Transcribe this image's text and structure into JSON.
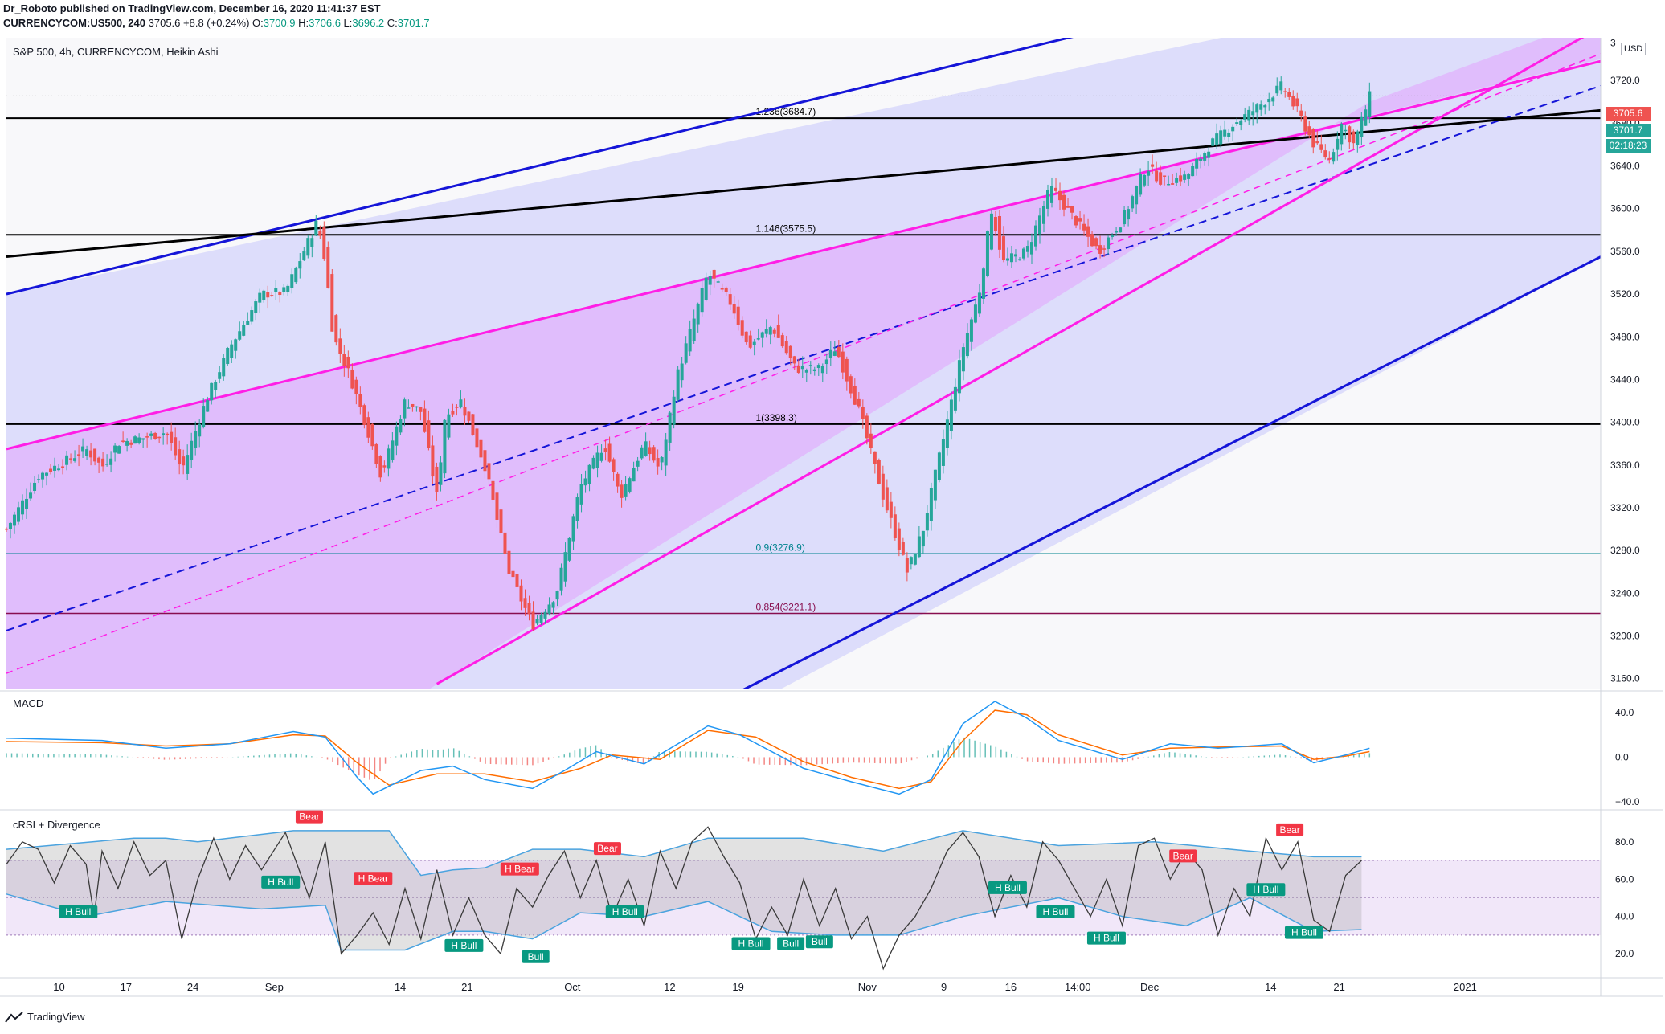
{
  "header": {
    "line1": "Dr_Roboto published on TradingView.com, December 16, 2020 11:41:37 EST",
    "symbol": "CURRENCYCOM:US500, 240",
    "last": "3705.6",
    "change": "+8.8 (+0.24%)",
    "o_label": "O:",
    "o": "3700.9",
    "h_label": "H:",
    "h": "3706.6",
    "l_label": "L:",
    "l": "3696.2",
    "c_label": "C:",
    "c": "3701.7"
  },
  "main_pane": {
    "title": "S&P 500, 4h, CURRENCYCOM, Heikin Ashi",
    "currency": "USD",
    "price_tag": "3705.6",
    "close_tag": "3701.7",
    "countdown": "02:18:23",
    "top_tick_partial": "3"
  },
  "colors": {
    "up": "#26a69a",
    "down": "#ef5350",
    "channel_blue": "#1515d8",
    "channel_pink": "#ff1ee6",
    "fib_black": "#000000",
    "fib_teal": "#00838f",
    "fib_red": "#880e4f",
    "macd_line": "#2196f3",
    "signal_line": "#ff6d00",
    "crsi_band": "#4aa3df",
    "bear": "#f23645",
    "bull": "#089981"
  },
  "macd_pane": {
    "title": "MACD"
  },
  "crsi_pane": {
    "title": "cRSI + Divergence"
  },
  "brand": "TradingView",
  "chart_data": [
    {
      "type": "candlestick",
      "title": "S&P 500, 4h, CURRENCYCOM, Heikin Ashi",
      "ylim": [
        3150,
        3760
      ],
      "y_ticks": [
        3720.0,
        3680.0,
        3640.0,
        3600.0,
        3560.0,
        3520.0,
        3480.0,
        3440.0,
        3400.0,
        3360.0,
        3320.0,
        3280.0,
        3240.0,
        3200.0,
        3160.0
      ],
      "x_ticks": [
        "10",
        "17",
        "24",
        "Sep",
        "14",
        "21",
        "Oct",
        "12",
        "19",
        "Nov",
        "9",
        "16",
        "14:00",
        "Dec",
        "14",
        "21",
        "2021"
      ],
      "close_path": [
        [
          0.0,
          3300
        ],
        [
          0.02,
          3350
        ],
        [
          0.035,
          3362
        ],
        [
          0.05,
          3375
        ],
        [
          0.06,
          3358
        ],
        [
          0.07,
          3381
        ],
        [
          0.085,
          3385
        ],
        [
          0.1,
          3391
        ],
        [
          0.11,
          3355
        ],
        [
          0.125,
          3420
        ],
        [
          0.14,
          3470
        ],
        [
          0.16,
          3520
        ],
        [
          0.175,
          3522
        ],
        [
          0.185,
          3555
        ],
        [
          0.195,
          3588
        ],
        [
          0.2,
          3550
        ],
        [
          0.205,
          3480
        ],
        [
          0.215,
          3445
        ],
        [
          0.225,
          3400
        ],
        [
          0.235,
          3350
        ],
        [
          0.25,
          3420
        ],
        [
          0.26,
          3410
        ],
        [
          0.27,
          3330
        ],
        [
          0.275,
          3405
        ],
        [
          0.285,
          3420
        ],
        [
          0.3,
          3360
        ],
        [
          0.315,
          3260
        ],
        [
          0.33,
          3210
        ],
        [
          0.345,
          3240
        ],
        [
          0.36,
          3340
        ],
        [
          0.375,
          3380
        ],
        [
          0.385,
          3330
        ],
        [
          0.4,
          3380
        ],
        [
          0.41,
          3355
        ],
        [
          0.42,
          3440
        ],
        [
          0.44,
          3540
        ],
        [
          0.455,
          3510
        ],
        [
          0.465,
          3470
        ],
        [
          0.48,
          3490
        ],
        [
          0.495,
          3450
        ],
        [
          0.51,
          3450
        ],
        [
          0.52,
          3470
        ],
        [
          0.535,
          3410
        ],
        [
          0.55,
          3330
        ],
        [
          0.565,
          3260
        ],
        [
          0.575,
          3300
        ],
        [
          0.59,
          3400
        ],
        [
          0.6,
          3470
        ],
        [
          0.61,
          3520
        ],
        [
          0.618,
          3600
        ],
        [
          0.625,
          3550
        ],
        [
          0.64,
          3560
        ],
        [
          0.655,
          3620
        ],
        [
          0.67,
          3590
        ],
        [
          0.685,
          3560
        ],
        [
          0.7,
          3590
        ],
        [
          0.715,
          3640
        ],
        [
          0.725,
          3625
        ],
        [
          0.74,
          3630
        ],
        [
          0.755,
          3660
        ],
        [
          0.77,
          3680
        ],
        [
          0.785,
          3695
        ],
        [
          0.8,
          3715
        ],
        [
          0.81,
          3690
        ],
        [
          0.82,
          3660
        ],
        [
          0.83,
          3645
        ],
        [
          0.837,
          3680
        ],
        [
          0.845,
          3660
        ],
        [
          0.855,
          3705
        ]
      ],
      "levels": [
        {
          "label": "1.236(3684.7)",
          "value": 3684.7
        },
        {
          "label": "1.146(3575.5)",
          "value": 3575.5
        },
        {
          "label": "1(3398.3)",
          "value": 3398.3
        },
        {
          "label": "0.9(3276.9)",
          "value": 3276.9
        },
        {
          "label": "0.854(3221.1)",
          "value": 3221.1
        }
      ]
    },
    {
      "type": "line",
      "title": "MACD",
      "ylim": [
        -45,
        55
      ],
      "y_ticks": [
        40.0,
        0.0,
        -40.0
      ],
      "macd_path": [
        [
          0.0,
          17
        ],
        [
          0.06,
          15
        ],
        [
          0.1,
          8
        ],
        [
          0.14,
          12
        ],
        [
          0.18,
          23
        ],
        [
          0.2,
          18
        ],
        [
          0.22,
          -18
        ],
        [
          0.23,
          -33
        ],
        [
          0.26,
          -12
        ],
        [
          0.28,
          -8
        ],
        [
          0.3,
          -20
        ],
        [
          0.33,
          -28
        ],
        [
          0.35,
          -12
        ],
        [
          0.37,
          5
        ],
        [
          0.4,
          -6
        ],
        [
          0.44,
          28
        ],
        [
          0.46,
          20
        ],
        [
          0.5,
          -10
        ],
        [
          0.53,
          -22
        ],
        [
          0.56,
          -33
        ],
        [
          0.58,
          -20
        ],
        [
          0.6,
          30
        ],
        [
          0.62,
          50
        ],
        [
          0.64,
          35
        ],
        [
          0.66,
          15
        ],
        [
          0.7,
          -2
        ],
        [
          0.73,
          12
        ],
        [
          0.76,
          8
        ],
        [
          0.8,
          12
        ],
        [
          0.82,
          -5
        ],
        [
          0.84,
          2
        ],
        [
          0.855,
          8
        ]
      ],
      "signal_path": [
        [
          0.0,
          14
        ],
        [
          0.06,
          13
        ],
        [
          0.1,
          10
        ],
        [
          0.14,
          12
        ],
        [
          0.18,
          20
        ],
        [
          0.2,
          19
        ],
        [
          0.22,
          -5
        ],
        [
          0.24,
          -25
        ],
        [
          0.27,
          -15
        ],
        [
          0.3,
          -15
        ],
        [
          0.33,
          -22
        ],
        [
          0.36,
          -10
        ],
        [
          0.38,
          2
        ],
        [
          0.41,
          -2
        ],
        [
          0.44,
          24
        ],
        [
          0.47,
          18
        ],
        [
          0.5,
          -4
        ],
        [
          0.53,
          -18
        ],
        [
          0.56,
          -28
        ],
        [
          0.58,
          -22
        ],
        [
          0.6,
          15
        ],
        [
          0.62,
          42
        ],
        [
          0.64,
          38
        ],
        [
          0.66,
          20
        ],
        [
          0.7,
          2
        ],
        [
          0.73,
          8
        ],
        [
          0.76,
          9
        ],
        [
          0.8,
          10
        ],
        [
          0.82,
          -2
        ],
        [
          0.84,
          1
        ],
        [
          0.855,
          5
        ]
      ]
    },
    {
      "type": "line",
      "title": "cRSI + Divergence",
      "ylim": [
        8,
        95
      ],
      "y_ticks": [
        80.0,
        60.0,
        40.0,
        20.0
      ],
      "crsi_path": [
        [
          0.0,
          68
        ],
        [
          0.01,
          80
        ],
        [
          0.02,
          76
        ],
        [
          0.03,
          58
        ],
        [
          0.04,
          78
        ],
        [
          0.05,
          68
        ],
        [
          0.055,
          40
        ],
        [
          0.06,
          75
        ],
        [
          0.07,
          55
        ],
        [
          0.08,
          80
        ],
        [
          0.09,
          62
        ],
        [
          0.1,
          70
        ],
        [
          0.11,
          28
        ],
        [
          0.12,
          60
        ],
        [
          0.13,
          82
        ],
        [
          0.14,
          60
        ],
        [
          0.15,
          78
        ],
        [
          0.16,
          65
        ],
        [
          0.175,
          85
        ],
        [
          0.19,
          50
        ],
        [
          0.2,
          80
        ],
        [
          0.21,
          20
        ],
        [
          0.22,
          30
        ],
        [
          0.23,
          42
        ],
        [
          0.24,
          25
        ],
        [
          0.25,
          55
        ],
        [
          0.26,
          28
        ],
        [
          0.27,
          65
        ],
        [
          0.28,
          30
        ],
        [
          0.29,
          50
        ],
        [
          0.3,
          30
        ],
        [
          0.31,
          20
        ],
        [
          0.32,
          55
        ],
        [
          0.33,
          45
        ],
        [
          0.34,
          62
        ],
        [
          0.35,
          75
        ],
        [
          0.36,
          50
        ],
        [
          0.37,
          70
        ],
        [
          0.38,
          40
        ],
        [
          0.39,
          60
        ],
        [
          0.4,
          35
        ],
        [
          0.41,
          75
        ],
        [
          0.42,
          55
        ],
        [
          0.43,
          80
        ],
        [
          0.44,
          88
        ],
        [
          0.45,
          72
        ],
        [
          0.46,
          58
        ],
        [
          0.47,
          28
        ],
        [
          0.48,
          45
        ],
        [
          0.49,
          30
        ],
        [
          0.5,
          60
        ],
        [
          0.51,
          35
        ],
        [
          0.52,
          55
        ],
        [
          0.53,
          28
        ],
        [
          0.54,
          40
        ],
        [
          0.55,
          12
        ],
        [
          0.56,
          30
        ],
        [
          0.57,
          40
        ],
        [
          0.58,
          55
        ],
        [
          0.59,
          75
        ],
        [
          0.6,
          85
        ],
        [
          0.61,
          72
        ],
        [
          0.62,
          40
        ],
        [
          0.63,
          62
        ],
        [
          0.64,
          45
        ],
        [
          0.65,
          80
        ],
        [
          0.66,
          70
        ],
        [
          0.67,
          55
        ],
        [
          0.68,
          40
        ],
        [
          0.69,
          60
        ],
        [
          0.7,
          35
        ],
        [
          0.71,
          78
        ],
        [
          0.72,
          82
        ],
        [
          0.73,
          60
        ],
        [
          0.74,
          75
        ],
        [
          0.75,
          65
        ],
        [
          0.76,
          30
        ],
        [
          0.77,
          55
        ],
        [
          0.78,
          40
        ],
        [
          0.79,
          82
        ],
        [
          0.8,
          65
        ],
        [
          0.81,
          80
        ],
        [
          0.82,
          38
        ],
        [
          0.83,
          32
        ],
        [
          0.84,
          62
        ],
        [
          0.85,
          70
        ]
      ],
      "band_upper": [
        [
          0.0,
          76
        ],
        [
          0.08,
          82
        ],
        [
          0.1,
          82
        ],
        [
          0.12,
          80
        ],
        [
          0.18,
          86
        ],
        [
          0.24,
          86
        ],
        [
          0.26,
          62
        ],
        [
          0.28,
          65
        ],
        [
          0.3,
          66
        ],
        [
          0.33,
          76
        ],
        [
          0.36,
          76
        ],
        [
          0.4,
          72
        ],
        [
          0.44,
          82
        ],
        [
          0.5,
          82
        ],
        [
          0.55,
          75
        ],
        [
          0.6,
          86
        ],
        [
          0.66,
          78
        ],
        [
          0.72,
          80
        ],
        [
          0.78,
          75
        ],
        [
          0.82,
          72
        ],
        [
          0.85,
          72
        ]
      ],
      "band_lower": [
        [
          0.0,
          52
        ],
        [
          0.05,
          40
        ],
        [
          0.1,
          48
        ],
        [
          0.16,
          44
        ],
        [
          0.2,
          46
        ],
        [
          0.21,
          22
        ],
        [
          0.25,
          22
        ],
        [
          0.28,
          32
        ],
        [
          0.3,
          32
        ],
        [
          0.33,
          28
        ],
        [
          0.36,
          42
        ],
        [
          0.4,
          40
        ],
        [
          0.44,
          48
        ],
        [
          0.48,
          32
        ],
        [
          0.52,
          30
        ],
        [
          0.56,
          30
        ],
        [
          0.6,
          40
        ],
        [
          0.66,
          50
        ],
        [
          0.7,
          40
        ],
        [
          0.74,
          35
        ],
        [
          0.78,
          50
        ],
        [
          0.82,
          32
        ],
        [
          0.85,
          33
        ]
      ],
      "divergence_labels": [
        {
          "text": "H Bull",
          "kind": "bull",
          "x": 0.045,
          "y": 42
        },
        {
          "text": "Bear",
          "kind": "bear",
          "x": 0.19,
          "y": 93
        },
        {
          "text": "H Bull",
          "kind": "bull",
          "x": 0.172,
          "y": 58
        },
        {
          "text": "H Bear",
          "kind": "bear",
          "x": 0.23,
          "y": 60
        },
        {
          "text": "H Bull",
          "kind": "bull",
          "x": 0.287,
          "y": 24
        },
        {
          "text": "H Bear",
          "kind": "bear",
          "x": 0.322,
          "y": 65
        },
        {
          "text": "Bull",
          "kind": "bull",
          "x": 0.332,
          "y": 18
        },
        {
          "text": "Bear",
          "kind": "bear",
          "x": 0.377,
          "y": 76
        },
        {
          "text": "H Bull",
          "kind": "bull",
          "x": 0.388,
          "y": 42
        },
        {
          "text": "H Bull",
          "kind": "bull",
          "x": 0.467,
          "y": 25
        },
        {
          "text": "Bull",
          "kind": "bull",
          "x": 0.492,
          "y": 25
        },
        {
          "text": "Bull",
          "kind": "bull",
          "x": 0.51,
          "y": 26
        },
        {
          "text": "H Bull",
          "kind": "bull",
          "x": 0.628,
          "y": 55
        },
        {
          "text": "H Bull",
          "kind": "bull",
          "x": 0.658,
          "y": 42
        },
        {
          "text": "Bear",
          "kind": "bear",
          "x": 0.738,
          "y": 72
        },
        {
          "text": "H Bull",
          "kind": "bull",
          "x": 0.69,
          "y": 28
        },
        {
          "text": "Bear",
          "kind": "bear",
          "x": 0.805,
          "y": 86
        },
        {
          "text": "H Bull",
          "kind": "bull",
          "x": 0.79,
          "y": 54
        },
        {
          "text": "H Bull",
          "kind": "bull",
          "x": 0.814,
          "y": 31
        }
      ]
    }
  ]
}
